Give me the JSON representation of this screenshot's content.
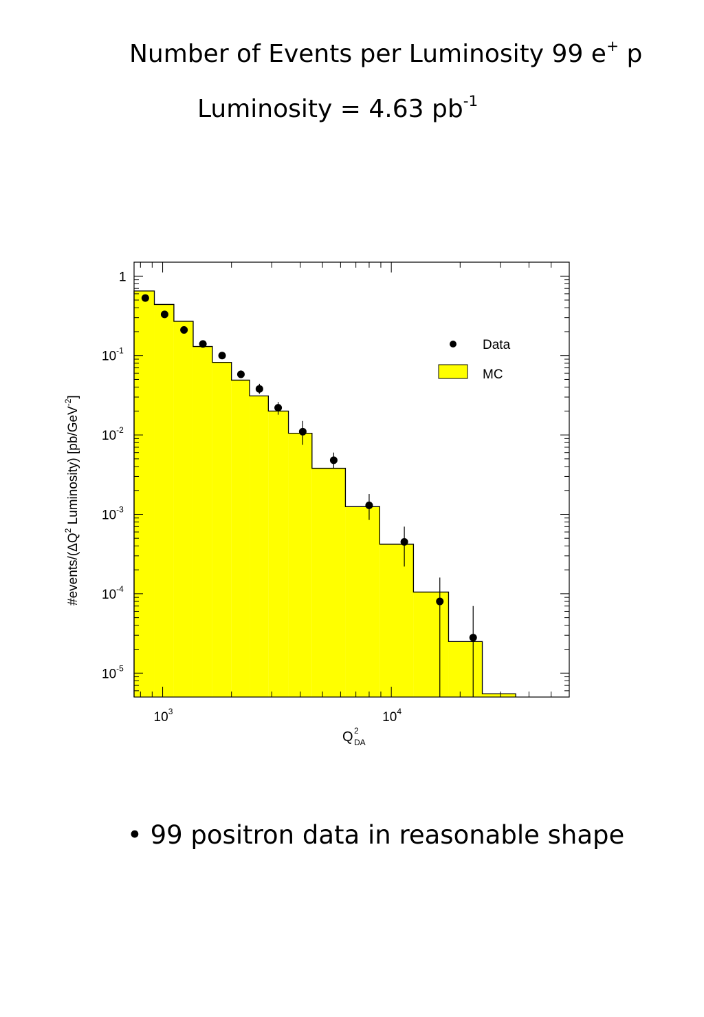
{
  "slide": {
    "title": {
      "text": "Number of Events per Luminosity  99 e",
      "sup": "+",
      "tail": " p"
    },
    "subtitle": {
      "text": "Luminosity = 4.63 pb",
      "sup": "-1"
    },
    "bullet": "• 99 positron data in reasonable shape"
  },
  "chart_data": {
    "type": "bar",
    "xscale": "log",
    "yscale": "log",
    "xlim": [
      750,
      60000
    ],
    "ylim": [
      5e-06,
      1.5
    ],
    "xlabel": {
      "main": "Q",
      "sup": "2",
      "sub": "DA"
    },
    "ylabel": {
      "pre": "#events/(ΔQ",
      "sup": "2",
      "mid": " Luminosity) [pb/GeV",
      "sup2": "-2",
      "post": "]"
    },
    "x_ticks": [
      {
        "value": 1000,
        "base": "10",
        "exp": "3"
      },
      {
        "value": 10000,
        "base": "10",
        "exp": "4"
      }
    ],
    "y_ticks": [
      {
        "value": 1,
        "base": "1",
        "exp": ""
      },
      {
        "value": 0.1,
        "base": "10",
        "exp": "-1"
      },
      {
        "value": 0.01,
        "base": "10",
        "exp": "-2"
      },
      {
        "value": 0.001,
        "base": "10",
        "exp": "-3"
      },
      {
        "value": 0.0001,
        "base": "10",
        "exp": "-4"
      },
      {
        "value": 1e-05,
        "base": "10",
        "exp": "-5"
      }
    ],
    "legend": {
      "position": "top-right",
      "entries": [
        "Data",
        "MC"
      ]
    },
    "mc": {
      "name": "MC",
      "color": "#ffff00",
      "bin_edges": [
        750,
        920,
        1120,
        1360,
        1650,
        2000,
        2400,
        2900,
        3550,
        4500,
        6300,
        8900,
        12500,
        17800,
        25000,
        35000
      ],
      "values": [
        0.65,
        0.44,
        0.27,
        0.13,
        0.082,
        0.049,
        0.031,
        0.02,
        0.0105,
        0.0038,
        0.00125,
        0.00042,
        0.000105,
        2.5e-05,
        5.5e-06
      ]
    },
    "data": {
      "name": "Data",
      "color": "#000000",
      "points": [
        {
          "x": 840,
          "y": 0.53,
          "lo": 0.5,
          "hi": 0.56
        },
        {
          "x": 1020,
          "y": 0.33,
          "lo": 0.31,
          "hi": 0.35
        },
        {
          "x": 1240,
          "y": 0.21,
          "lo": 0.19,
          "hi": 0.23
        },
        {
          "x": 1500,
          "y": 0.14,
          "lo": 0.128,
          "hi": 0.154
        },
        {
          "x": 1820,
          "y": 0.1,
          "lo": 0.09,
          "hi": 0.111
        },
        {
          "x": 2200,
          "y": 0.058,
          "lo": 0.052,
          "hi": 0.065
        },
        {
          "x": 2650,
          "y": 0.038,
          "lo": 0.033,
          "hi": 0.044
        },
        {
          "x": 3200,
          "y": 0.022,
          "lo": 0.018,
          "hi": 0.026
        },
        {
          "x": 4100,
          "y": 0.011,
          "lo": 0.0075,
          "hi": 0.015
        },
        {
          "x": 5600,
          "y": 0.0048,
          "lo": 0.0038,
          "hi": 0.006
        },
        {
          "x": 8000,
          "y": 0.0013,
          "lo": 0.00085,
          "hi": 0.0018
        },
        {
          "x": 11400,
          "y": 0.00045,
          "lo": 0.00022,
          "hi": 0.0007
        },
        {
          "x": 16300,
          "y": 8e-05,
          "lo": 5e-06,
          "hi": 0.00016
        },
        {
          "x": 22800,
          "y": 2.8e-05,
          "lo": 5e-06,
          "hi": 7e-05
        }
      ]
    }
  }
}
